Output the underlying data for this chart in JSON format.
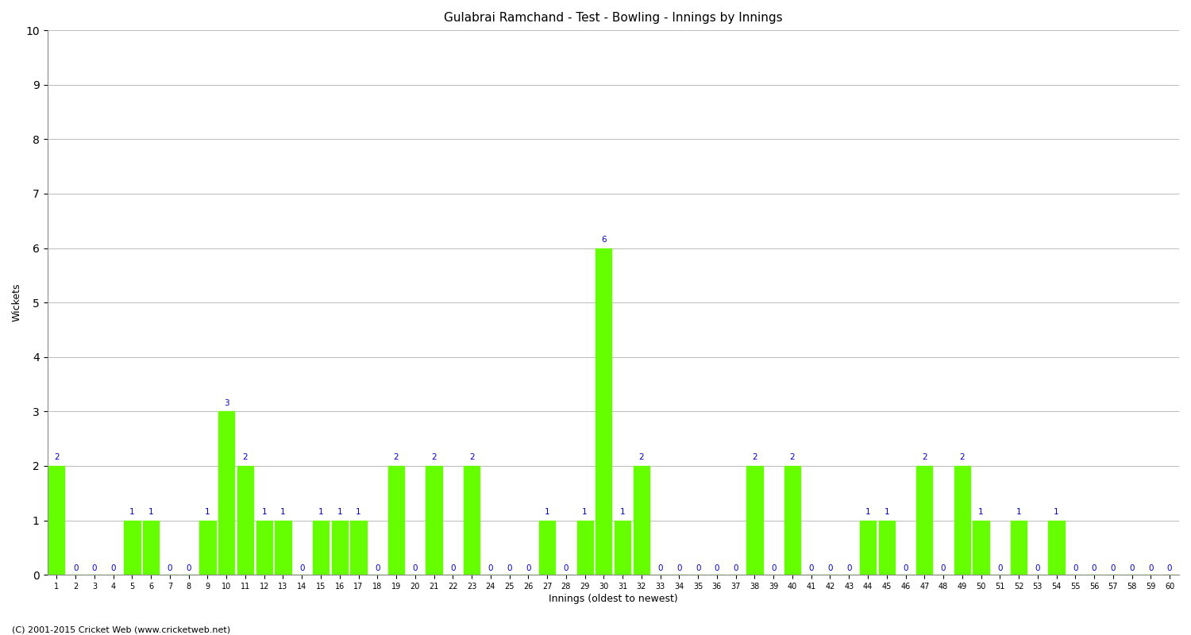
{
  "title": "Gulabrai Ramchand - Test - Bowling - Innings by Innings",
  "xlabel": "Innings (oldest to newest)",
  "ylabel": "Wickets",
  "ylim_max": 10,
  "bar_color": "#66ff00",
  "label_color": "#0000cc",
  "background_color": "#ffffff",
  "grid_color": "#bbbbbb",
  "copyright": "(C) 2001-2015 Cricket Web (www.cricketweb.net)",
  "wickets": [
    2,
    0,
    0,
    0,
    1,
    1,
    0,
    0,
    1,
    3,
    2,
    1,
    1,
    0,
    1,
    1,
    1,
    0,
    2,
    0,
    2,
    0,
    2,
    0,
    0,
    0,
    1,
    0,
    1,
    6,
    1,
    2,
    0,
    0,
    0,
    0,
    0,
    2,
    0,
    2,
    0,
    0,
    0,
    1,
    1,
    0,
    2,
    0,
    2,
    1,
    0,
    1,
    0,
    1,
    0,
    0,
    0,
    0,
    0,
    0
  ]
}
